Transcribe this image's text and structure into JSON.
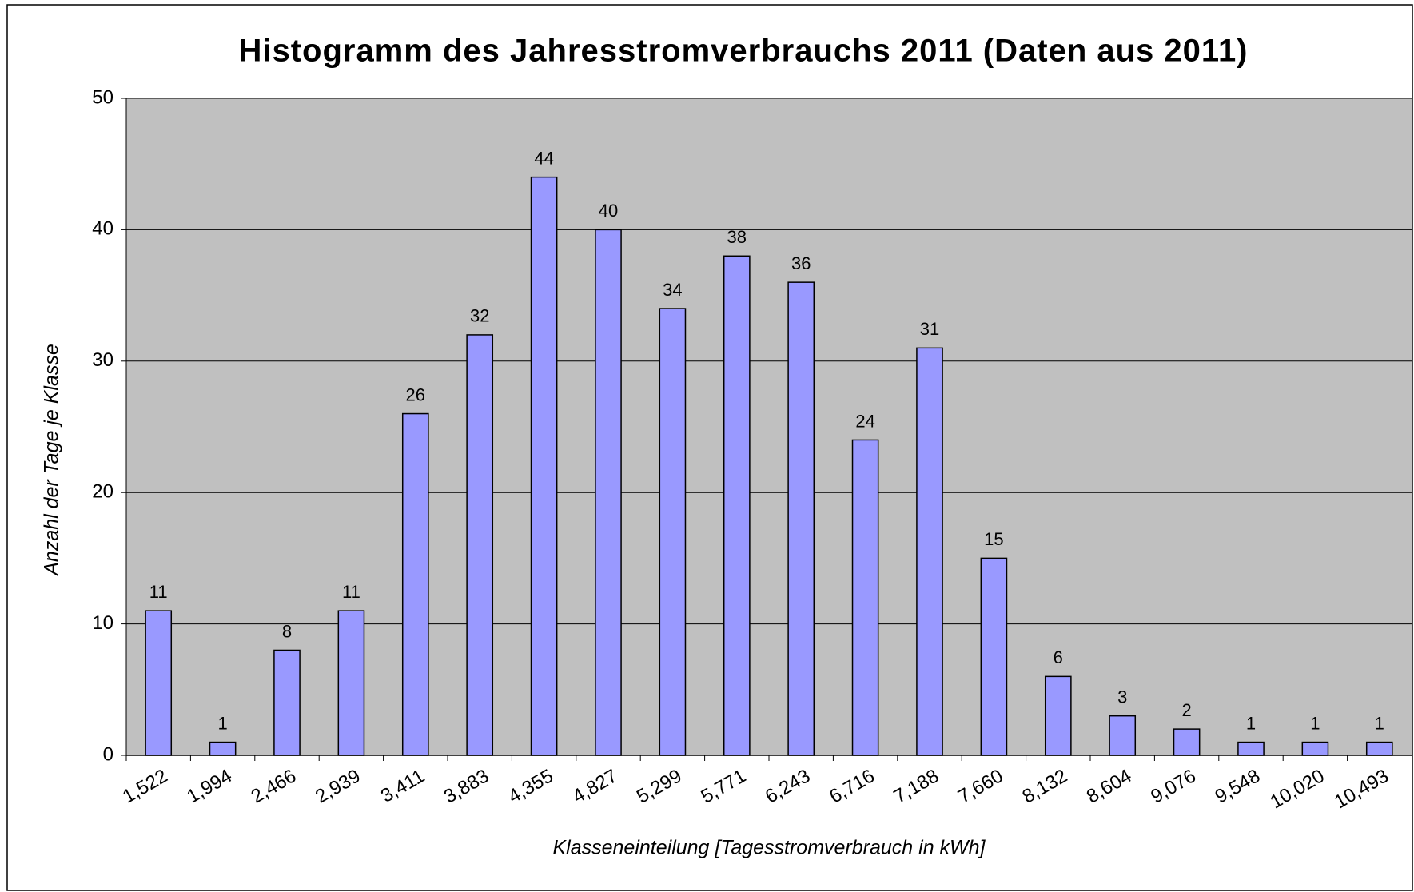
{
  "chart_data": {
    "type": "bar",
    "title": "Histogramm des Jahresstromverbrauchs 2011 (Daten aus 2011)",
    "xlabel": "Klasseneinteilung [Tagesstromverbrauch in kWh]",
    "ylabel": "Anzahl der Tage je Klasse",
    "categories": [
      "1,522",
      "1,994",
      "2,466",
      "2,939",
      "3,411",
      "3,883",
      "4,355",
      "4,827",
      "5,299",
      "5,771",
      "6,243",
      "6,716",
      "7,188",
      "7,660",
      "8,132",
      "8,604",
      "9,076",
      "9,548",
      "10,020",
      "10,493"
    ],
    "values": [
      11,
      1,
      8,
      11,
      26,
      32,
      44,
      40,
      34,
      38,
      36,
      24,
      31,
      15,
      6,
      3,
      2,
      1,
      1,
      1
    ],
    "color": "#9999ff",
    "ylim": [
      0,
      50
    ],
    "yticks": [
      0,
      10,
      20,
      30,
      40,
      50
    ],
    "grid": true
  }
}
